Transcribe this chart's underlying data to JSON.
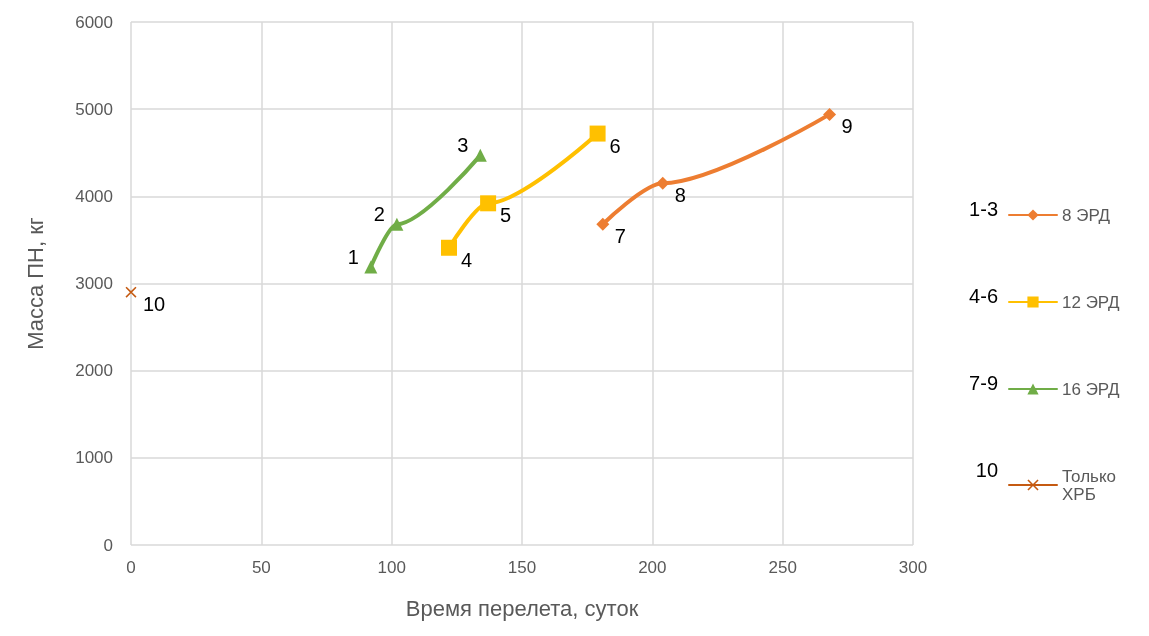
{
  "chart_data": {
    "type": "line",
    "xlabel": "Время перелета, суток",
    "ylabel": "Масса ПН, кг",
    "xlim": [
      0,
      300
    ],
    "xticks": [
      0,
      50,
      100,
      150,
      200,
      250,
      300
    ],
    "ylim": [
      0,
      6000
    ],
    "yticks": [
      0,
      1000,
      2000,
      3000,
      4000,
      5000,
      6000
    ],
    "grid": true,
    "legend": "right",
    "line_style": "solid",
    "annotations": [
      "1-3",
      "4-6",
      "7-9",
      "10",
      {
        "text": "7",
        "x": 181,
        "y": 3680
      },
      {
        "text": "8",
        "x": 204,
        "y": 4150
      },
      {
        "text": "9",
        "x": 268,
        "y": 4940
      },
      {
        "text": "4",
        "x": 122,
        "y": 3410
      },
      {
        "text": "5",
        "x": 137,
        "y": 3920
      },
      {
        "text": "6",
        "x": 179,
        "y": 4720
      },
      {
        "text": "1",
        "x": 92,
        "y": 3190
      },
      {
        "text": "2",
        "x": 102,
        "y": 3680
      },
      {
        "text": "3",
        "x": 134,
        "y": 4470
      },
      {
        "text": "10",
        "x": 0,
        "y": 2900
      }
    ],
    "series": [
      {
        "name": "8 ЭРД",
        "color": "#ed7d31",
        "marker": "diamond",
        "x": [
          181,
          204,
          268
        ],
        "values": [
          3680,
          4150,
          4940
        ]
      },
      {
        "name": "12 ЭРД",
        "color": "#ffc000",
        "marker": "square",
        "x": [
          122,
          137,
          179
        ],
        "values": [
          3410,
          3920,
          4720
        ]
      },
      {
        "name": "16 ЭРД",
        "color": "#70ad47",
        "marker": "triangle",
        "x": [
          92,
          102,
          134
        ],
        "values": [
          3190,
          3680,
          4470
        ]
      },
      {
        "name": "Только ХРБ",
        "color": "#c55a11",
        "marker": "cross",
        "x": [
          0
        ],
        "values": [
          2900
        ]
      }
    ]
  }
}
